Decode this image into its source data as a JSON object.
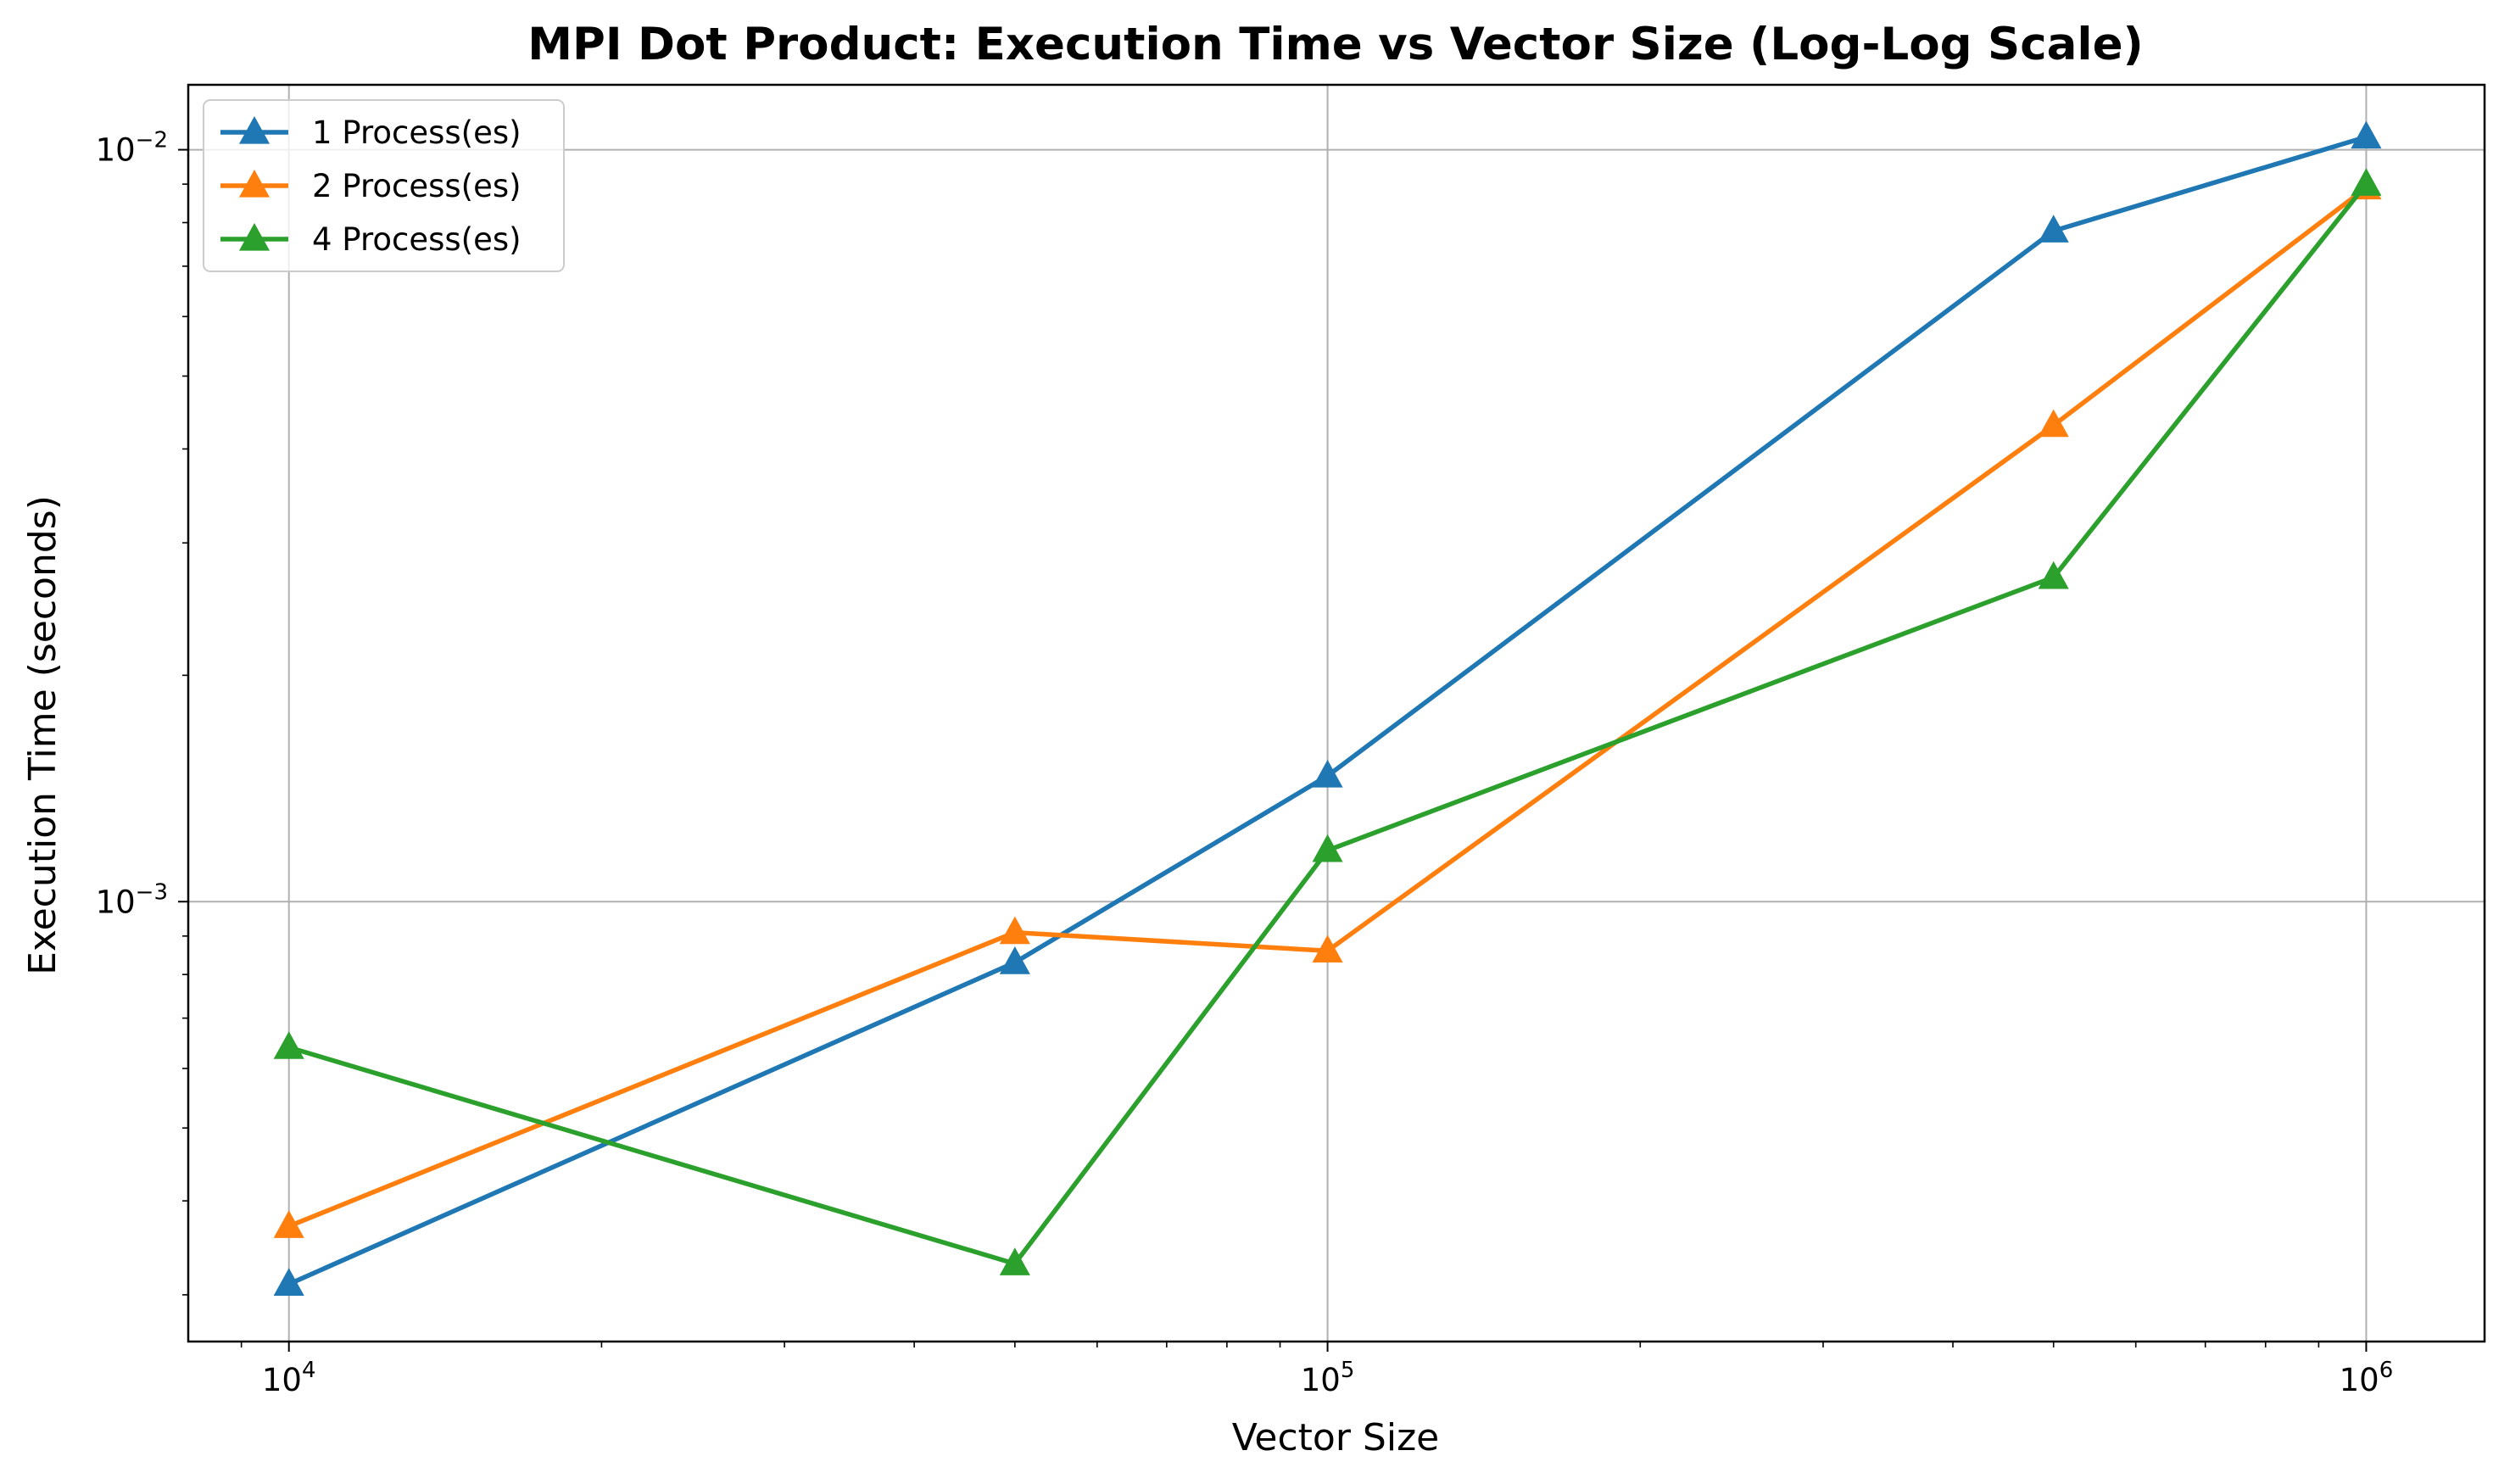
{
  "chart_data": {
    "type": "line",
    "title": "MPI Dot Product: Execution Time vs Vector Size (Log-Log Scale)",
    "xlabel": "Vector Size",
    "ylabel": "Execution Time (seconds)",
    "xscale": "log",
    "yscale": "log",
    "xlim": [
      8000,
      1300000
    ],
    "ylim": [
      0.00026,
      0.0122
    ],
    "x": [
      10000,
      50000,
      100000,
      500000,
      1000000
    ],
    "x_ticks": [
      {
        "value": 10000,
        "base": "10",
        "exp": "4"
      },
      {
        "value": 100000,
        "base": "10",
        "exp": "5"
      },
      {
        "value": 1000000,
        "base": "10",
        "exp": "6"
      }
    ],
    "y_ticks": [
      {
        "value": 0.001,
        "base": "10",
        "exp": "−3"
      },
      {
        "value": 0.01,
        "base": "10",
        "exp": "−2"
      }
    ],
    "grid": true,
    "legend_position": "top-left",
    "marker": "triangle-up",
    "series": [
      {
        "name": "1 Process(es)",
        "color": "#1f77b4",
        "values": [
          0.00031,
          0.00083,
          0.00147,
          0.0078,
          0.0104
        ]
      },
      {
        "name": "2 Process(es)",
        "color": "#ff7f0e",
        "values": [
          0.00037,
          0.00091,
          0.00086,
          0.0043,
          0.0089
        ]
      },
      {
        "name": "4 Process(es)",
        "color": "#2ca02c",
        "values": [
          0.00064,
          0.00033,
          0.00117,
          0.0027,
          0.009
        ]
      }
    ]
  }
}
